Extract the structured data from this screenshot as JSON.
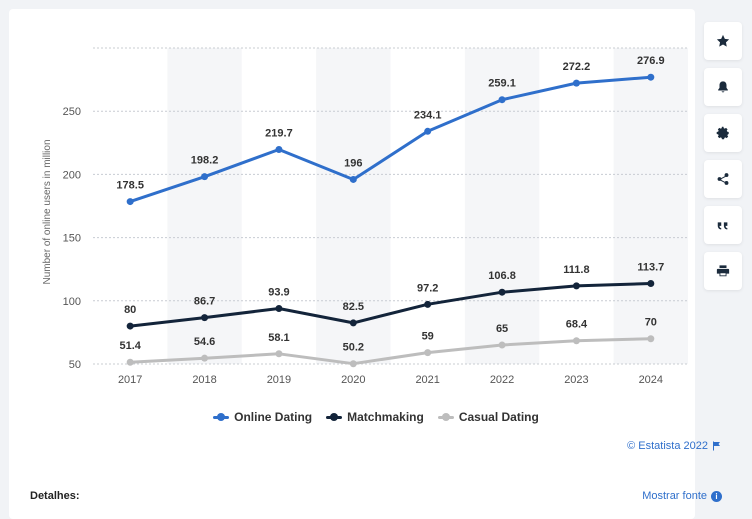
{
  "chart_data": {
    "type": "line",
    "categories": [
      "2017",
      "2018",
      "2019",
      "2020",
      "2021",
      "2022",
      "2023",
      "2024"
    ],
    "series": [
      {
        "name": "Online Dating",
        "color": "#2f6fcb",
        "values": [
          178.5,
          198.2,
          219.7,
          196,
          234.1,
          259.1,
          272.2,
          276.9
        ]
      },
      {
        "name": "Matchmaking",
        "color": "#13243a",
        "values": [
          80,
          86.7,
          93.9,
          82.5,
          97.2,
          106.8,
          111.8,
          113.7
        ]
      },
      {
        "name": "Casual Dating",
        "color": "#bdbdbd",
        "values": [
          51.4,
          54.6,
          58.1,
          50.2,
          59,
          65,
          68.4,
          70
        ]
      }
    ],
    "ylabel": "Number of online users in million",
    "ylim": [
      50,
      300
    ],
    "yticks": [
      50,
      100,
      150,
      200,
      250
    ],
    "grid": true,
    "legend_position": "bottom-center"
  },
  "footer": {
    "copyright": "© Estatista 2022",
    "source_link": "Mostrar fonte",
    "details_label": "Detalhes:"
  },
  "toolbar": {
    "icons": [
      "star-icon",
      "bell-icon",
      "gear-icon",
      "share-icon",
      "quote-icon",
      "print-icon"
    ]
  }
}
